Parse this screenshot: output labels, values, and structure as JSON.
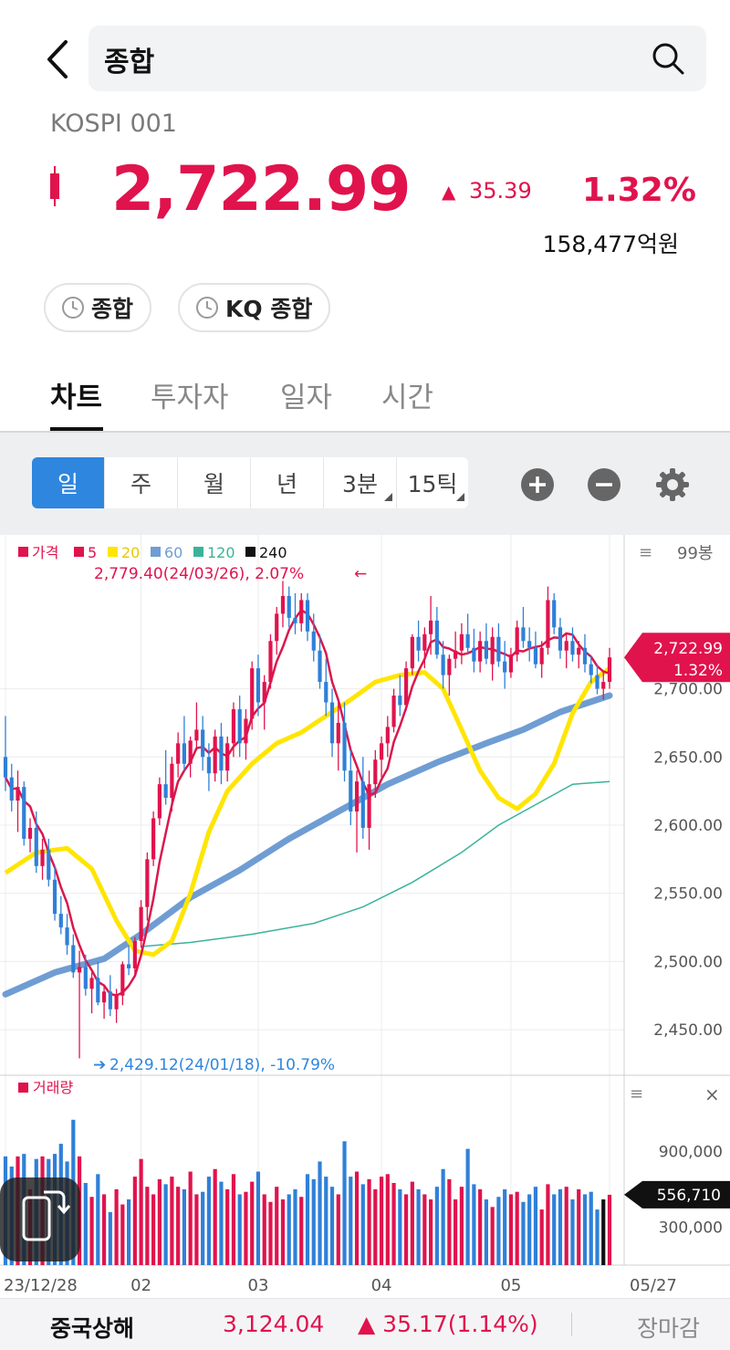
{
  "header": {
    "search_query": "종합"
  },
  "index": {
    "code": "KOSPI 001",
    "price": "2,722.99",
    "change_arrow": "▲",
    "change": "35.39",
    "change_pct": "1.32%",
    "turnover": "158,477억원",
    "color_up": "#e0134d"
  },
  "quick_links": [
    {
      "label": "종합"
    },
    {
      "label": "KQ 종합"
    }
  ],
  "tabs": [
    {
      "label": "차트",
      "active": true
    },
    {
      "label": "투자자"
    },
    {
      "label": "일자"
    },
    {
      "label": "시간"
    }
  ],
  "periods": [
    {
      "label": "일",
      "active": true
    },
    {
      "label": "주"
    },
    {
      "label": "월"
    },
    {
      "label": "년"
    },
    {
      "label": "3분"
    },
    {
      "label": "15틱"
    }
  ],
  "toolbar_icons": [
    "zoom-in-icon",
    "zoom-out-icon",
    "gear-icon"
  ],
  "chart_data": {
    "type": "candlestick",
    "legend": [
      {
        "name": "가격",
        "color": "#e0134d"
      },
      {
        "name": "5",
        "color": "#e0134d"
      },
      {
        "name": "20",
        "color": "#ffe500"
      },
      {
        "name": "60",
        "color": "#6f9dd3"
      },
      {
        "name": "120",
        "color": "#3bb39b"
      },
      {
        "name": "240",
        "color": "#111111"
      }
    ],
    "candle_count_label": "99봉",
    "high_annotation": "2,779.40(24/03/26), 2.07%",
    "low_annotation": "2,429.12(24/01/18), -10.79%",
    "y_ticks": [
      "2,700.00",
      "2,650.00",
      "2,600.00",
      "2,550.00",
      "2,500.00",
      "2,450.00"
    ],
    "y_tick_values": [
      2700,
      2650,
      2600,
      2550,
      2500,
      2450
    ],
    "ylim": [
      2428,
      2776
    ],
    "current_price_label": "2,722.99",
    "current_pct_label": "1.32%",
    "x_ticks": [
      {
        "label": "23/12/28",
        "index": 0
      },
      {
        "label": "02",
        "index": 22
      },
      {
        "label": "03",
        "index": 41
      },
      {
        "label": "04",
        "index": 61
      },
      {
        "label": "05",
        "index": 82
      },
      {
        "label": "05/27",
        "index": 98
      }
    ],
    "ma5_close_path": "computed from candle closes",
    "ma20": [
      [
        0,
        2565
      ],
      [
        5,
        2580
      ],
      [
        10,
        2583
      ],
      [
        14,
        2568
      ],
      [
        18,
        2530
      ],
      [
        21,
        2508
      ],
      [
        24,
        2505
      ],
      [
        27,
        2515
      ],
      [
        30,
        2550
      ],
      [
        33,
        2595
      ],
      [
        36,
        2625
      ],
      [
        40,
        2645
      ],
      [
        44,
        2660
      ],
      [
        48,
        2668
      ],
      [
        52,
        2680
      ],
      [
        56,
        2692
      ],
      [
        60,
        2705
      ],
      [
        64,
        2710
      ],
      [
        68,
        2712
      ],
      [
        71,
        2700
      ],
      [
        74,
        2670
      ],
      [
        77,
        2640
      ],
      [
        80,
        2620
      ],
      [
        83,
        2612
      ],
      [
        86,
        2623
      ],
      [
        89,
        2645
      ],
      [
        92,
        2682
      ],
      [
        95,
        2705
      ],
      [
        98,
        2715
      ]
    ],
    "ma60": [
      [
        0,
        2476
      ],
      [
        8,
        2492
      ],
      [
        16,
        2502
      ],
      [
        22,
        2520
      ],
      [
        30,
        2547
      ],
      [
        38,
        2567
      ],
      [
        46,
        2590
      ],
      [
        54,
        2610
      ],
      [
        62,
        2630
      ],
      [
        70,
        2646
      ],
      [
        78,
        2660
      ],
      [
        84,
        2670
      ],
      [
        90,
        2683
      ],
      [
        98,
        2695
      ]
    ],
    "ma120": [
      [
        22,
        2511
      ],
      [
        30,
        2514
      ],
      [
        40,
        2520
      ],
      [
        50,
        2528
      ],
      [
        58,
        2540
      ],
      [
        66,
        2558
      ],
      [
        74,
        2580
      ],
      [
        80,
        2600
      ],
      [
        86,
        2615
      ],
      [
        92,
        2630
      ],
      [
        98,
        2632
      ]
    ],
    "candles": [
      [
        2650,
        2680,
        2625,
        2635
      ],
      [
        2635,
        2645,
        2610,
        2618
      ],
      [
        2618,
        2640,
        2595,
        2628
      ],
      [
        2628,
        2632,
        2585,
        2590
      ],
      [
        2590,
        2605,
        2580,
        2598
      ],
      [
        2598,
        2610,
        2565,
        2570
      ],
      [
        2570,
        2590,
        2560,
        2582
      ],
      [
        2582,
        2590,
        2555,
        2560
      ],
      [
        2560,
        2570,
        2530,
        2535
      ],
      [
        2535,
        2548,
        2520,
        2525
      ],
      [
        2525,
        2535,
        2505,
        2512
      ],
      [
        2512,
        2520,
        2488,
        2492
      ],
      [
        2492,
        2508,
        2429,
        2496
      ],
      [
        2496,
        2505,
        2475,
        2480
      ],
      [
        2480,
        2492,
        2462,
        2488
      ],
      [
        2488,
        2500,
        2468,
        2470
      ],
      [
        2470,
        2482,
        2458,
        2478
      ],
      [
        2478,
        2490,
        2460,
        2465
      ],
      [
        2465,
        2480,
        2455,
        2475
      ],
      [
        2475,
        2500,
        2468,
        2498
      ],
      [
        2498,
        2512,
        2490,
        2495
      ],
      [
        2495,
        2518,
        2490,
        2515
      ],
      [
        2515,
        2545,
        2510,
        2540
      ],
      [
        2540,
        2580,
        2530,
        2575
      ],
      [
        2575,
        2610,
        2570,
        2605
      ],
      [
        2605,
        2635,
        2600,
        2630
      ],
      [
        2630,
        2655,
        2615,
        2620
      ],
      [
        2620,
        2650,
        2610,
        2645
      ],
      [
        2645,
        2668,
        2635,
        2660
      ],
      [
        2660,
        2680,
        2640,
        2645
      ],
      [
        2645,
        2665,
        2635,
        2662
      ],
      [
        2662,
        2690,
        2655,
        2670
      ],
      [
        2670,
        2680,
        2640,
        2650
      ],
      [
        2650,
        2660,
        2625,
        2638
      ],
      [
        2638,
        2670,
        2632,
        2665
      ],
      [
        2665,
        2675,
        2630,
        2640
      ],
      [
        2640,
        2665,
        2632,
        2660
      ],
      [
        2660,
        2690,
        2650,
        2685
      ],
      [
        2685,
        2695,
        2650,
        2660
      ],
      [
        2660,
        2685,
        2648,
        2678
      ],
      [
        2678,
        2720,
        2670,
        2715
      ],
      [
        2715,
        2725,
        2680,
        2690
      ],
      [
        2690,
        2710,
        2670,
        2705
      ],
      [
        2705,
        2740,
        2700,
        2735
      ],
      [
        2735,
        2760,
        2725,
        2755
      ],
      [
        2755,
        2779,
        2745,
        2768
      ],
      [
        2768,
        2775,
        2745,
        2752
      ],
      [
        2752,
        2770,
        2740,
        2748
      ],
      [
        2748,
        2770,
        2742,
        2765
      ],
      [
        2765,
        2770,
        2735,
        2742
      ],
      [
        2742,
        2755,
        2720,
        2728
      ],
      [
        2728,
        2740,
        2700,
        2705
      ],
      [
        2705,
        2722,
        2680,
        2690
      ],
      [
        2690,
        2700,
        2650,
        2660
      ],
      [
        2660,
        2690,
        2640,
        2675
      ],
      [
        2675,
        2690,
        2632,
        2640
      ],
      [
        2640,
        2655,
        2600,
        2610
      ],
      [
        2610,
        2640,
        2580,
        2632
      ],
      [
        2632,
        2650,
        2590,
        2598
      ],
      [
        2598,
        2640,
        2582,
        2630
      ],
      [
        2630,
        2655,
        2620,
        2648
      ],
      [
        2648,
        2665,
        2635,
        2660
      ],
      [
        2660,
        2680,
        2650,
        2672
      ],
      [
        2672,
        2700,
        2668,
        2695
      ],
      [
        2695,
        2710,
        2680,
        2688
      ],
      [
        2688,
        2720,
        2684,
        2715
      ],
      [
        2715,
        2740,
        2710,
        2738
      ],
      [
        2738,
        2750,
        2720,
        2728
      ],
      [
        2728,
        2745,
        2715,
        2740
      ],
      [
        2740,
        2768,
        2725,
        2750
      ],
      [
        2750,
        2760,
        2722,
        2725
      ],
      [
        2725,
        2735,
        2700,
        2710
      ],
      [
        2710,
        2725,
        2695,
        2722
      ],
      [
        2722,
        2742,
        2715,
        2728
      ],
      [
        2728,
        2748,
        2718,
        2740
      ],
      [
        2740,
        2755,
        2725,
        2730
      ],
      [
        2730,
        2744,
        2712,
        2720
      ],
      [
        2720,
        2742,
        2712,
        2735
      ],
      [
        2735,
        2748,
        2718,
        2722
      ],
      [
        2718,
        2745,
        2706,
        2738
      ],
      [
        2738,
        2748,
        2716,
        2720
      ],
      [
        2720,
        2735,
        2700,
        2712
      ],
      [
        2712,
        2730,
        2708,
        2725
      ],
      [
        2725,
        2750,
        2720,
        2745
      ],
      [
        2745,
        2760,
        2730,
        2735
      ],
      [
        2735,
        2745,
        2720,
        2730
      ],
      [
        2730,
        2742,
        2715,
        2718
      ],
      [
        2718,
        2735,
        2708,
        2730
      ],
      [
        2730,
        2775,
        2725,
        2765
      ],
      [
        2765,
        2770,
        2740,
        2745
      ],
      [
        2745,
        2752,
        2722,
        2728
      ],
      [
        2728,
        2740,
        2715,
        2735
      ],
      [
        2735,
        2745,
        2720,
        2725
      ],
      [
        2725,
        2735,
        2715,
        2730
      ],
      [
        2730,
        2740,
        2712,
        2718
      ],
      [
        2718,
        2724,
        2704,
        2710
      ],
      [
        2710,
        2718,
        2696,
        2700
      ],
      [
        2700,
        2712,
        2692,
        2705
      ],
      [
        2705,
        2730,
        2700,
        2722.99
      ]
    ],
    "volume": {
      "label": "거래량",
      "ticks": [
        "900,000",
        "300,000"
      ],
      "tick_values": [
        900000,
        300000
      ],
      "ylim": [
        0,
        1300000
      ],
      "current_label": "556,710",
      "values": [
        860000,
        780000,
        860000,
        880000,
        600000,
        840000,
        860000,
        840000,
        880000,
        960000,
        820000,
        1150000,
        860000,
        650000,
        540000,
        720000,
        560000,
        420000,
        600000,
        480000,
        520000,
        700000,
        840000,
        620000,
        560000,
        680000,
        640000,
        700000,
        620000,
        600000,
        740000,
        560000,
        580000,
        700000,
        760000,
        660000,
        600000,
        720000,
        560000,
        580000,
        660000,
        740000,
        560000,
        500000,
        620000,
        520000,
        560000,
        600000,
        540000,
        720000,
        680000,
        820000,
        700000,
        620000,
        560000,
        980000,
        700000,
        740000,
        640000,
        680000,
        600000,
        700000,
        720000,
        650000,
        600000,
        560000,
        660000,
        600000,
        560000,
        520000,
        620000,
        760000,
        680000,
        520000,
        620000,
        920000,
        640000,
        600000,
        520000,
        460000,
        540000,
        600000,
        560000,
        580000,
        500000,
        560000,
        620000,
        440000,
        640000,
        560000,
        600000,
        620000,
        520000,
        600000,
        560000,
        580000,
        440000,
        520000,
        556710
      ],
      "up_color": "#e0134d",
      "down_color": "#2f80d8"
    }
  },
  "float_button": {
    "icon": "rotate-screen-icon"
  },
  "bottom_ticker": {
    "name": "중국상해",
    "value": "3,124.04",
    "change": "▲ 35.17(1.14%)",
    "status": "장마감"
  }
}
